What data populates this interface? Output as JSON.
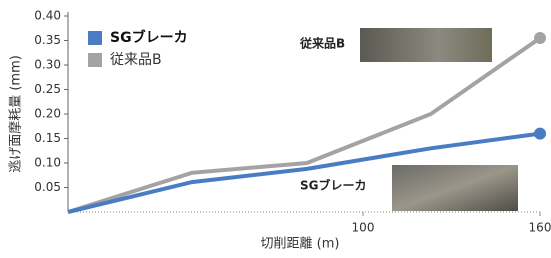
{
  "chart_data": {
    "type": "line",
    "x_label": "切削距離 (m)",
    "y_label": "逃げ面摩耗量 (mm)",
    "x": [
      0,
      42,
      81,
      123,
      160
    ],
    "series": [
      {
        "name": "SGブレーカ",
        "color": "#4a7cc4",
        "values": [
          0,
          0.061,
          0.088,
          0.13,
          0.16
        ]
      },
      {
        "name": "従来品B",
        "color": "#a3a3a3",
        "values": [
          0,
          0.08,
          0.1,
          0.2,
          0.355
        ]
      }
    ],
    "xlim": [
      0,
      160
    ],
    "xticks": [
      100,
      160
    ],
    "ylim": [
      0,
      0.4
    ],
    "yticks": [
      0.05,
      {
        "value": 0.1,
        "label": "0.10"
      },
      0.15,
      {
        "value": 0.2,
        "label": "0.20"
      },
      0.25,
      {
        "value": 0.3,
        "label": "0.30"
      },
      0.35,
      {
        "value": 0.4,
        "label": "0.40"
      }
    ],
    "annotations": [
      "従来品B",
      "SGブレーカ"
    ],
    "legend": "upper-left"
  }
}
